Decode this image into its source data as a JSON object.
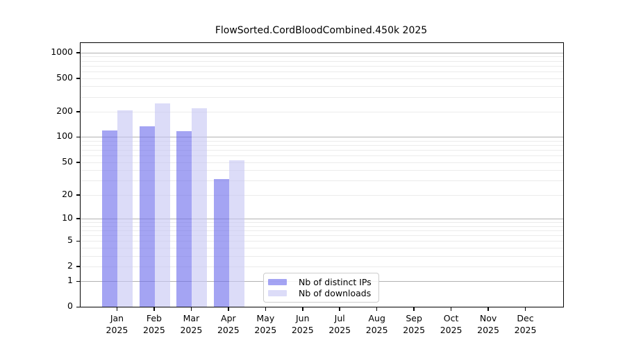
{
  "title": "FlowSorted.CordBloodCombined.450k 2025",
  "chart_data": {
    "type": "bar",
    "title": "FlowSorted.CordBloodCombined.450k 2025",
    "y_scale": "log1p",
    "ylim": [
      0,
      1300
    ],
    "y_ticks": [
      0,
      1,
      2,
      5,
      10,
      20,
      50,
      100,
      200,
      500,
      1000
    ],
    "major_gridlines": [
      1,
      10,
      100,
      1000
    ],
    "grid": "horizontal",
    "legend_position": "inside-bottom-center",
    "categories": [
      "Jan",
      "Feb",
      "Mar",
      "Apr",
      "May",
      "Jun",
      "Jul",
      "Aug",
      "Sep",
      "Oct",
      "Nov",
      "Dec"
    ],
    "year_label": "2025",
    "series": [
      {
        "name": "Nb of distinct IPs",
        "color": "rgba(108,108,236,0.62)",
        "color_hex_on_white": "#a6a6f2",
        "values": [
          120,
          135,
          117,
          31,
          0,
          0,
          0,
          0,
          0,
          0,
          0,
          0
        ]
      },
      {
        "name": "Nb of downloads",
        "color": "rgba(198,198,244,0.62)",
        "color_hex_on_white": "#dcdcf8",
        "values": [
          208,
          250,
          218,
          53,
          0,
          0,
          0,
          0,
          0,
          0,
          0,
          0
        ]
      }
    ]
  }
}
